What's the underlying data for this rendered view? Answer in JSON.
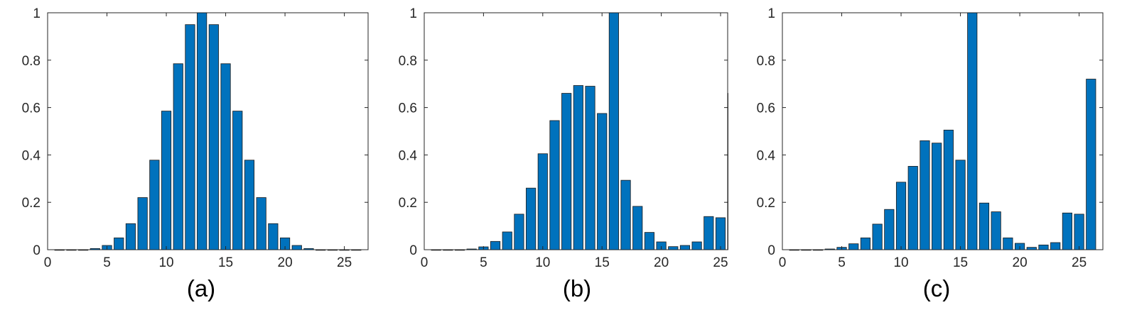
{
  "bar_color": "#0072bd",
  "bar_edge_color": "#1a1a1a",
  "axis_color": "#262626",
  "chart_data": [
    {
      "type": "bar",
      "caption": "(a)",
      "x": [
        1,
        2,
        3,
        4,
        5,
        6,
        7,
        8,
        9,
        10,
        11,
        12,
        13,
        14,
        15,
        16,
        17,
        18,
        19,
        20,
        21,
        22,
        23,
        24,
        25,
        26
      ],
      "values": [
        0,
        0,
        0,
        0.005,
        0.018,
        0.05,
        0.11,
        0.22,
        0.378,
        0.585,
        0.785,
        0.95,
        1.0,
        0.95,
        0.785,
        0.585,
        0.378,
        0.22,
        0.11,
        0.05,
        0.018,
        0.005,
        0,
        0,
        0,
        0
      ],
      "xlim": [
        0,
        27
      ],
      "ylim": [
        0,
        1
      ],
      "xticks": [
        "0",
        "5",
        "10",
        "15",
        "20",
        "25"
      ],
      "xtick_values": [
        0,
        5,
        10,
        15,
        20,
        25
      ],
      "yticks": [
        "0",
        "0.2",
        "0.4",
        "0.6",
        "0.8",
        "1"
      ],
      "ytick_values": [
        0,
        0.2,
        0.4,
        0.6,
        0.8,
        1
      ],
      "grid": false
    },
    {
      "type": "bar",
      "caption": "(b)",
      "x": [
        1,
        2,
        3,
        4,
        5,
        6,
        7,
        8,
        9,
        10,
        11,
        12,
        13,
        14,
        15,
        16,
        17,
        18,
        19,
        20,
        21,
        22,
        23,
        24,
        25,
        26
      ],
      "values": [
        0,
        0,
        0,
        0.003,
        0.012,
        0.035,
        0.075,
        0.15,
        0.26,
        0.405,
        0.545,
        0.66,
        0.693,
        0.69,
        0.575,
        1.0,
        0.293,
        0.183,
        0.073,
        0.033,
        0.013,
        0.018,
        0.033,
        0.14,
        0.135,
        0.66
      ],
      "xlim": [
        0,
        25.6
      ],
      "ylim": [
        0,
        1
      ],
      "xticks": [
        "0",
        "5",
        "10",
        "15",
        "20",
        "25"
      ],
      "xtick_values": [
        0,
        5,
        10,
        15,
        20,
        25
      ],
      "yticks": [
        "0",
        "0.2",
        "0.4",
        "0.6",
        "0.8",
        "1"
      ],
      "ytick_values": [
        0,
        0.2,
        0.4,
        0.6,
        0.8,
        1
      ],
      "grid": false
    },
    {
      "type": "bar",
      "caption": "(c)",
      "x": [
        1,
        2,
        3,
        4,
        5,
        6,
        7,
        8,
        9,
        10,
        11,
        12,
        13,
        14,
        15,
        16,
        17,
        18,
        19,
        20,
        21,
        22,
        23,
        24,
        25,
        26
      ],
      "values": [
        0,
        0,
        0,
        0.003,
        0.01,
        0.025,
        0.05,
        0.108,
        0.17,
        0.285,
        0.352,
        0.46,
        0.45,
        0.505,
        0.378,
        1.0,
        0.197,
        0.16,
        0.05,
        0.027,
        0.01,
        0.02,
        0.03,
        0.155,
        0.15,
        0.72
      ],
      "xlim": [
        0,
        27
      ],
      "ylim": [
        0,
        1
      ],
      "xticks": [
        "0",
        "5",
        "10",
        "15",
        "20",
        "25"
      ],
      "xtick_values": [
        0,
        5,
        10,
        15,
        20,
        25
      ],
      "yticks": [
        "0",
        "0.2",
        "0.4",
        "0.6",
        "0.8",
        "1"
      ],
      "ytick_values": [
        0,
        0.2,
        0.4,
        0.6,
        0.8,
        1
      ],
      "grid": false
    }
  ]
}
